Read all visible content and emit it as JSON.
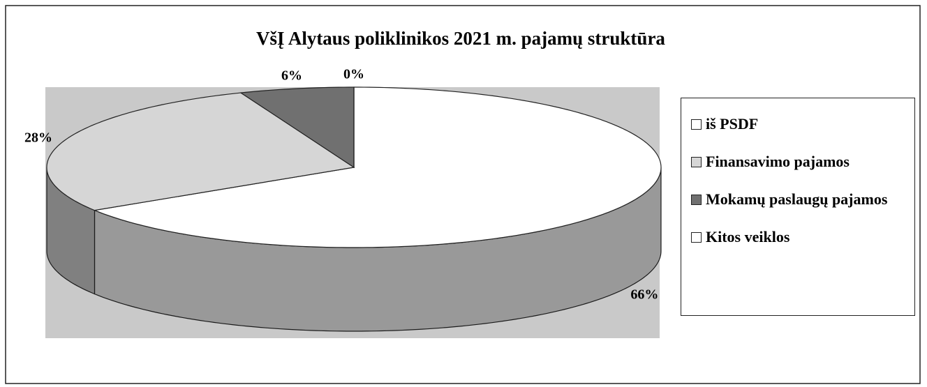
{
  "chart_data": {
    "type": "pie",
    "title": "VšĮ Alytaus poliklinikos 2021 m.  pajamų struktūra",
    "categories": [
      "iš PSDF",
      "Finansavimo pajamos",
      "Mokamų paslaugų pajamos",
      "Kitos veiklos"
    ],
    "values": [
      66,
      28,
      6,
      0
    ],
    "value_labels": [
      "66%",
      "28%",
      "6%",
      "0%"
    ],
    "colors": [
      "#ffffff",
      "#d6d6d6",
      "#707070",
      "#ffffff"
    ],
    "legend": "right"
  }
}
